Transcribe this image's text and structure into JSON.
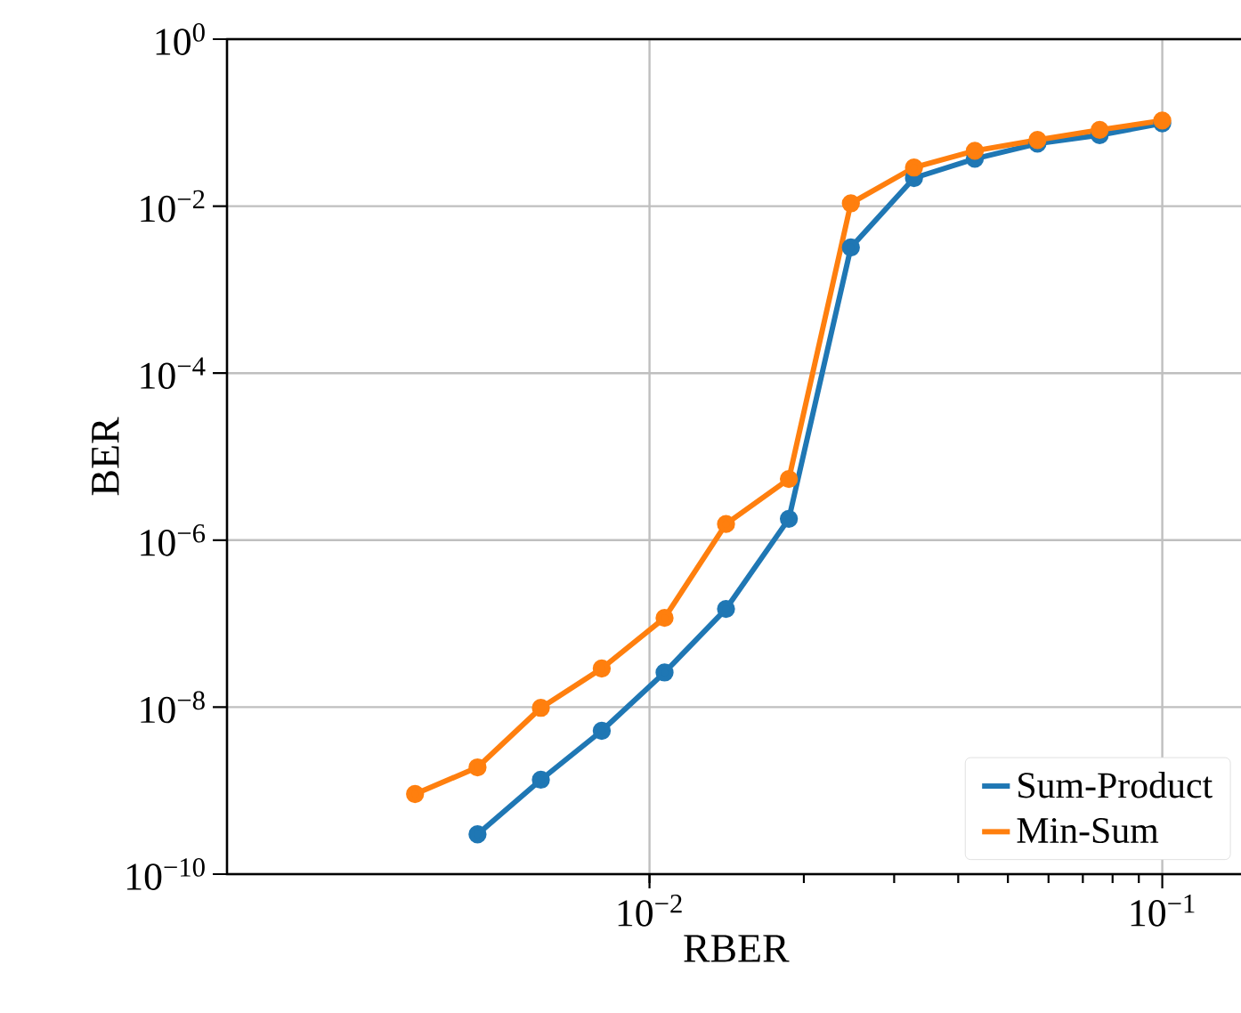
{
  "chart_data": {
    "type": "line",
    "xlabel": "RBER",
    "ylabel": "BER",
    "log": "xy",
    "xlim": [
      0.0015,
      0.145
    ],
    "ylim": [
      1e-10,
      1
    ],
    "xticks": [
      {
        "value": 0.01,
        "label": "10$^{−2}$"
      },
      {
        "value": 0.1,
        "label": "10$^{−1}$"
      }
    ],
    "yticks": [
      {
        "value": 1e-10,
        "label": "10$^{−10}$"
      },
      {
        "value": 1e-08,
        "label": "10$^{−8}$"
      },
      {
        "value": 1e-06,
        "label": "10$^{−6}$"
      },
      {
        "value": 0.0001,
        "label": "10$^{−4}$"
      },
      {
        "value": 0.01,
        "label": "10$^{−2}$"
      },
      {
        "value": 1,
        "label": "10$^{0}$"
      }
    ],
    "grid": true,
    "legend": "bottom right",
    "marker": "circle",
    "line_style": "solid",
    "series": [
      {
        "name": "Sum-Product",
        "color": "#1f77b4",
        "x": [
          0.00462,
          0.00614,
          0.00807,
          0.0107,
          0.0141,
          0.0187,
          0.0247,
          0.0328,
          0.0431,
          0.0571,
          0.0755,
          0.1
        ],
        "values": [
          3e-10,
          1.35e-09,
          5.2e-09,
          2.6e-08,
          1.5e-07,
          1.8e-06,
          0.0032,
          0.0217,
          0.037,
          0.056,
          0.071,
          0.098
        ]
      },
      {
        "name": "Min-Sum",
        "color": "#ff7f0e",
        "x": [
          0.00349,
          0.00462,
          0.00614,
          0.00807,
          0.0107,
          0.0141,
          0.0187,
          0.0247,
          0.0328,
          0.0431,
          0.0571,
          0.0755,
          0.1
        ],
        "values": [
          9.1e-10,
          1.9e-09,
          9.8e-09,
          2.9e-08,
          1.17e-07,
          1.56e-06,
          5.4e-06,
          0.0108,
          0.029,
          0.046,
          0.062,
          0.082,
          0.106
        ]
      }
    ]
  }
}
